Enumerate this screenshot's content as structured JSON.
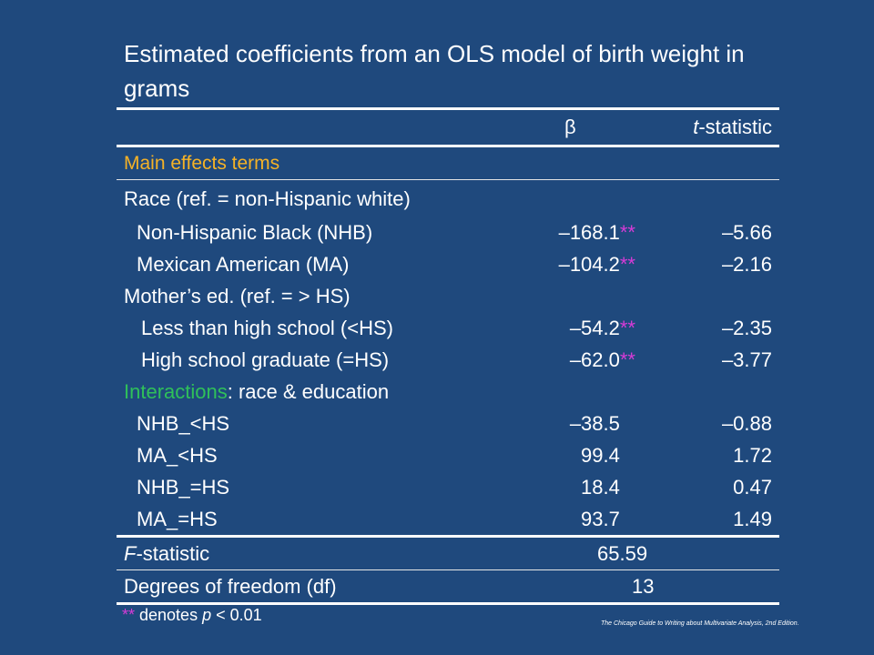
{
  "title": "Estimated coefficients from an OLS model of birth weight in grams",
  "header": {
    "beta": "β",
    "t_italic": "t",
    "t_rest": "-statistic"
  },
  "main_effects_label": "Main effects terms",
  "race_group": "Race (ref. = non-Hispanic white)",
  "rows_race": [
    {
      "label": "Non-Hispanic Black (NHB)",
      "beta": "–168.1",
      "stars": "**",
      "t": "–5.66"
    },
    {
      "label": "Mexican American (MA)",
      "beta": "–104.2",
      "stars": "**",
      "t": "–2.16"
    }
  ],
  "ed_group": "Mother’s ed. (ref. = > HS)",
  "rows_ed": [
    {
      "label": "Less than high school (<HS)",
      "beta": "–54.2",
      "stars": "**",
      "t": "–2.35"
    },
    {
      "label": "High school graduate (=HS)",
      "beta": "–62.0",
      "stars": "**",
      "t": "–3.77"
    }
  ],
  "interactions": {
    "colored": "Interactions",
    "rest": ": race & education"
  },
  "rows_int": [
    {
      "label": "NHB_<HS",
      "beta": "–38.5",
      "t": "–0.88"
    },
    {
      "label": "MA_<HS",
      "beta": "99.4",
      "t": "1.72"
    },
    {
      "label": "NHB_=HS",
      "beta": "18.4",
      "t": "0.47"
    },
    {
      "label": "MA_=HS",
      "beta": "93.7",
      "t": "1.49"
    }
  ],
  "fstat": {
    "label_italic": "F",
    "label_rest": "-statistic",
    "value": "65.59"
  },
  "df": {
    "label": "Degrees of freedom (df)",
    "value": "13"
  },
  "footnote": {
    "stars": "**",
    "text_pre": " denotes ",
    "p": "p",
    "text_post": " < 0.01"
  },
  "source": "The Chicago Guide to Writing about Multivariate Analysis, 2nd Edition.",
  "colors": {
    "background": "#1f497d",
    "main_effects": "#f5b226",
    "interactions": "#2fc05a",
    "stars": "#d63bd6"
  }
}
